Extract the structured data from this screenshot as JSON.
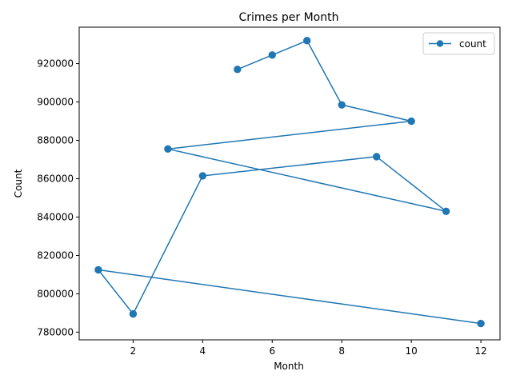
{
  "chart_data": {
    "type": "line",
    "title": "Crimes per Month",
    "xlabel": "Month",
    "ylabel": "Count",
    "xlim": [
      0.45,
      12.55
    ],
    "ylim": [
      776000,
      939000
    ],
    "xticks": [
      2,
      4,
      6,
      8,
      10,
      12
    ],
    "xtick_labels": [
      "2",
      "4",
      "6",
      "8",
      "10",
      "12"
    ],
    "yticks": [
      780000,
      800000,
      820000,
      840000,
      860000,
      880000,
      900000,
      920000
    ],
    "ytick_labels": [
      "780000",
      "800000",
      "820000",
      "840000",
      "860000",
      "880000",
      "900000",
      "920000"
    ],
    "grid": false,
    "legend": {
      "position": "top-right",
      "entries": [
        "count"
      ]
    },
    "series": [
      {
        "name": "count",
        "color": "#1f77b4",
        "marker": "circle",
        "x": [
          5,
          6,
          7,
          8,
          10,
          3,
          11,
          9,
          4,
          2,
          1,
          12
        ],
        "y": [
          917000,
          924500,
          932000,
          898500,
          890000,
          875500,
          843000,
          871500,
          861500,
          789500,
          812500,
          784500
        ]
      }
    ]
  }
}
